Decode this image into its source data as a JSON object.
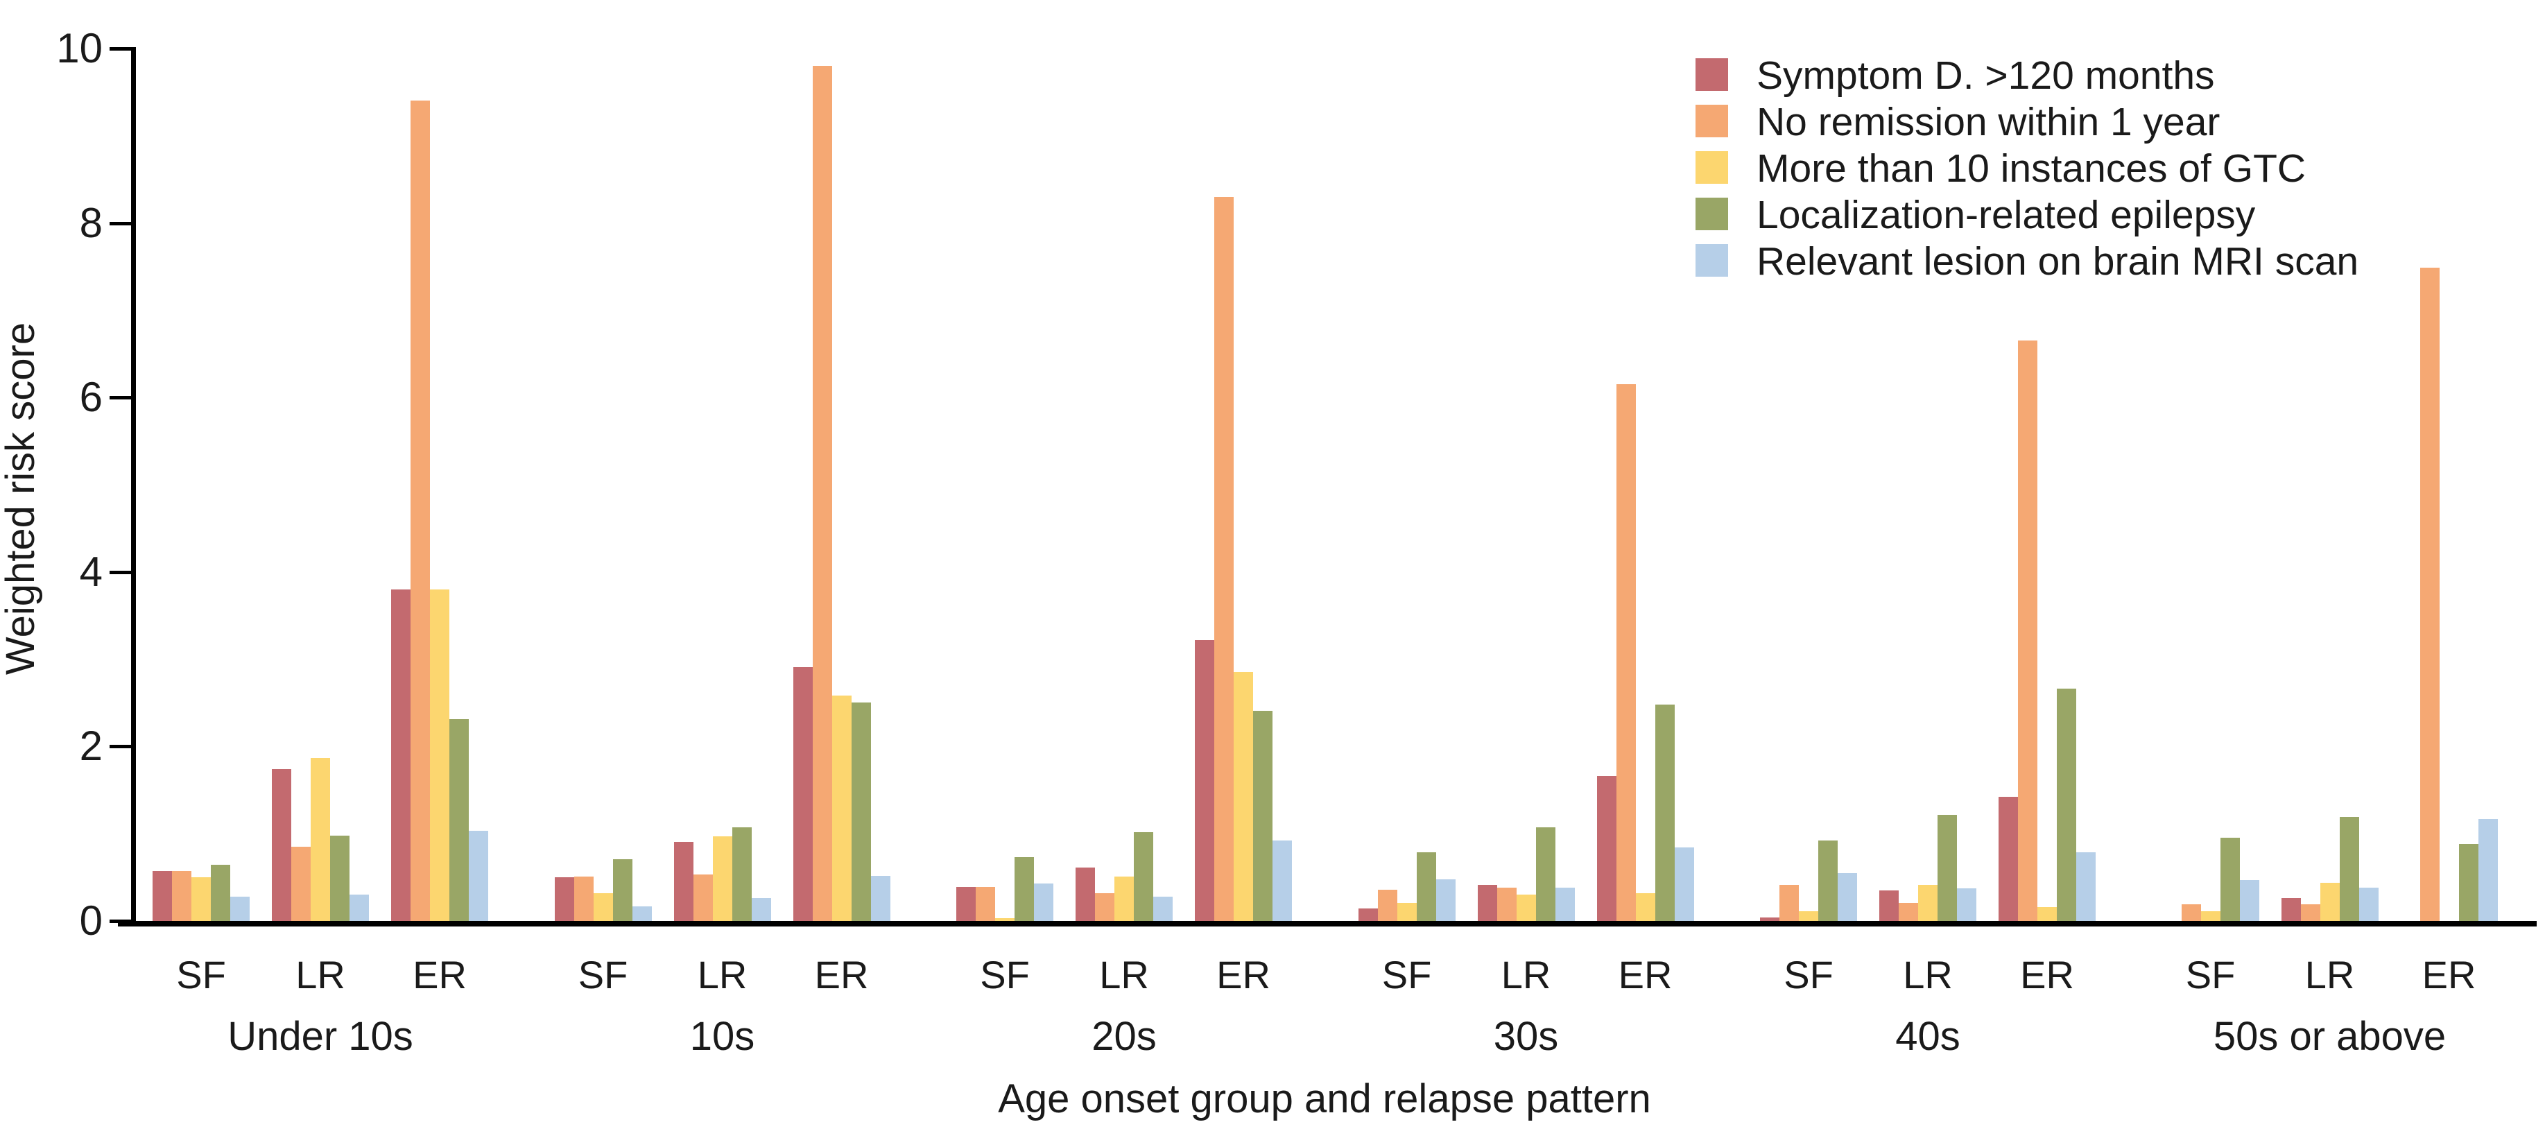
{
  "chart_data": {
    "type": "bar",
    "title": "",
    "ylabel": "Weighted risk score",
    "xlabel": "Age onset group and relapse pattern",
    "ylim": [
      0,
      10
    ],
    "yticks": [
      0,
      2,
      4,
      6,
      8,
      10
    ],
    "grid": false,
    "legend_position": "top-right",
    "series": [
      {
        "name": "Symptom D. >120 months",
        "color": "#C36A6F"
      },
      {
        "name": "No remission within 1 year",
        "color": "#F5A873"
      },
      {
        "name": "More than 10 instances of GTC",
        "color": "#FCD66F"
      },
      {
        "name": "Localization-related epilepsy",
        "color": "#99A666"
      },
      {
        "name": "Relevant lesion on brain MRI scan",
        "color": "#B6CFE8"
      }
    ],
    "cluster_labels": [
      "SF",
      "LR",
      "ER"
    ],
    "groups": [
      {
        "label": "Under 10s",
        "clusters": [
          {
            "label": "SF",
            "values": [
              0.57,
              0.57,
              0.5,
              0.64,
              0.28
            ]
          },
          {
            "label": "LR",
            "values": [
              1.74,
              0.85,
              1.87,
              0.98,
              0.3
            ]
          },
          {
            "label": "ER",
            "values": [
              3.8,
              9.4,
              3.8,
              2.31,
              1.03
            ]
          }
        ]
      },
      {
        "label": "10s",
        "clusters": [
          {
            "label": "SF",
            "values": [
              0.5,
              0.51,
              0.32,
              0.71,
              0.17
            ]
          },
          {
            "label": "LR",
            "values": [
              0.91,
              0.53,
              0.97,
              1.07,
              0.26
            ]
          },
          {
            "label": "ER",
            "values": [
              2.91,
              9.8,
              2.58,
              2.5,
              0.52
            ]
          }
        ]
      },
      {
        "label": "20s",
        "clusters": [
          {
            "label": "SF",
            "values": [
              0.39,
              0.39,
              0.03,
              0.73,
              0.43
            ]
          },
          {
            "label": "LR",
            "values": [
              0.61,
              0.32,
              0.51,
              1.02,
              0.28
            ]
          },
          {
            "label": "ER",
            "values": [
              3.22,
              8.3,
              2.85,
              2.41,
              0.92
            ]
          }
        ]
      },
      {
        "label": "30s",
        "clusters": [
          {
            "label": "SF",
            "values": [
              0.14,
              0.36,
              0.21,
              0.79,
              0.48
            ]
          },
          {
            "label": "LR",
            "values": [
              0.41,
              0.38,
              0.3,
              1.07,
              0.38
            ]
          },
          {
            "label": "ER",
            "values": [
              1.66,
              6.15,
              0.32,
              2.48,
              0.84
            ]
          }
        ]
      },
      {
        "label": "40s",
        "clusters": [
          {
            "label": "SF",
            "values": [
              0.04,
              0.41,
              0.11,
              0.92,
              0.55
            ]
          },
          {
            "label": "LR",
            "values": [
              0.35,
              0.21,
              0.41,
              1.22,
              0.37
            ]
          },
          {
            "label": "ER",
            "values": [
              1.42,
              6.65,
              0.16,
              2.66,
              0.79
            ]
          }
        ]
      },
      {
        "label": "50s or above",
        "clusters": [
          {
            "label": "SF",
            "values": [
              0.0,
              0.19,
              0.11,
              0.95,
              0.47
            ]
          },
          {
            "label": "LR",
            "values": [
              0.26,
              0.19,
              0.44,
              1.19,
              0.38
            ]
          },
          {
            "label": "ER",
            "values": [
              0.0,
              7.49,
              0.0,
              0.88,
              1.17
            ]
          }
        ]
      }
    ]
  }
}
